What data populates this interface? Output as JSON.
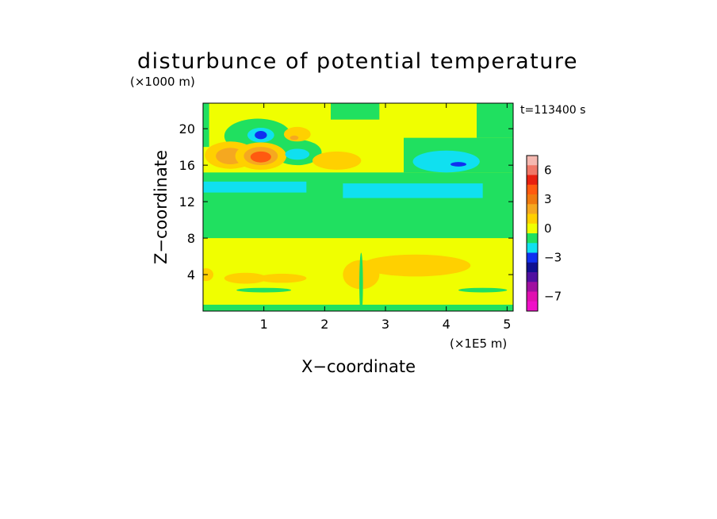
{
  "chart_data": {
    "type": "heatmap",
    "title": "disturbunce of potential temperature",
    "xlabel": "X−coordinate",
    "ylabel": "Z−coordinate",
    "x_unit": "(×1E5 m)",
    "y_unit": "(×1000 m)",
    "time_label": "t=113400 s",
    "xlim": [
      0,
      5.1
    ],
    "ylim": [
      0,
      22.8
    ],
    "x_ticks": [
      {
        "value": 1,
        "label": "1"
      },
      {
        "value": 2,
        "label": "2"
      },
      {
        "value": 3,
        "label": "3"
      },
      {
        "value": 4,
        "label": "4"
      },
      {
        "value": 5,
        "label": "5"
      }
    ],
    "y_ticks": [
      {
        "value": 4,
        "label": "4"
      },
      {
        "value": 8,
        "label": "8"
      },
      {
        "value": 12,
        "label": "12"
      },
      {
        "value": 16,
        "label": "16"
      },
      {
        "value": 20,
        "label": "20"
      }
    ],
    "colorbar": {
      "levels": [
        {
          "value": 7,
          "color": "#f5b8b0"
        },
        {
          "value": 6,
          "color": "#f07868"
        },
        {
          "value": 5,
          "color": "#e82010"
        },
        {
          "value": 4,
          "color": "#ff5a10"
        },
        {
          "value": 3,
          "color": "#f07a10"
        },
        {
          "value": 2,
          "color": "#f5a820"
        },
        {
          "value": 1,
          "color": "#ffd000"
        },
        {
          "value": 0,
          "color": "#f0ff00"
        },
        {
          "value": -1,
          "color": "#20e060"
        },
        {
          "value": -2,
          "color": "#10e0f0"
        },
        {
          "value": -3,
          "color": "#1030f0"
        },
        {
          "value": -4,
          "color": "#101090"
        },
        {
          "value": -5,
          "color": "#5010a0"
        },
        {
          "value": -6,
          "color": "#a010a0"
        },
        {
          "value": -7,
          "color": "#e010b0"
        },
        {
          "value": -8,
          "color": "#f010c8"
        }
      ],
      "tick_labels": [
        {
          "value": 6,
          "label": "6"
        },
        {
          "value": 3,
          "label": "3"
        },
        {
          "value": 0,
          "label": "0"
        },
        {
          "value": -3,
          "label": "−3"
        },
        {
          "value": -7,
          "label": "−7"
        }
      ]
    },
    "background_value": 0,
    "features": [
      {
        "kind": "band",
        "value": -1,
        "x0": 0,
        "x1": 5.1,
        "z0": 8.0,
        "z1": 15.2
      },
      {
        "kind": "band",
        "value": -2,
        "x0": 0,
        "x1": 1.7,
        "z0": 13.0,
        "z1": 14.2
      },
      {
        "kind": "band",
        "value": -2,
        "x0": 2.3,
        "x1": 4.6,
        "z0": 12.4,
        "z1": 14.0
      },
      {
        "kind": "band",
        "value": -1,
        "x0": 0,
        "x1": 5.1,
        "z0": 0.0,
        "z1": 0.7
      },
      {
        "kind": "band",
        "value": -1,
        "x0": 3.3,
        "x1": 5.1,
        "z0": 15.2,
        "z1": 19.0
      },
      {
        "kind": "band",
        "value": -1,
        "x0": 0,
        "x1": 0.1,
        "z0": 18.0,
        "z1": 22.8
      },
      {
        "kind": "band",
        "value": -1,
        "x0": 2.1,
        "x1": 2.9,
        "z0": 21.0,
        "z1": 22.8
      },
      {
        "kind": "band",
        "value": -1,
        "x0": 4.5,
        "x1": 5.1,
        "z0": 19.0,
        "z1": 22.8
      },
      {
        "kind": "blob",
        "value": -1,
        "x": 0.9,
        "z": 19.2,
        "rx": 0.55,
        "rz": 1.9
      },
      {
        "kind": "blob",
        "value": -1,
        "x": 1.55,
        "z": 17.4,
        "rx": 0.4,
        "rz": 1.4
      },
      {
        "kind": "blob",
        "value": 1,
        "x": 0.45,
        "z": 17.1,
        "rx": 0.42,
        "rz": 1.5
      },
      {
        "kind": "blob",
        "value": 2,
        "x": 0.45,
        "z": 17.0,
        "rx": 0.24,
        "rz": 0.9
      },
      {
        "kind": "blob",
        "value": 1,
        "x": 0.95,
        "z": 17.0,
        "rx": 0.42,
        "rz": 1.5
      },
      {
        "kind": "blob",
        "value": 2,
        "x": 0.95,
        "z": 17.0,
        "rx": 0.28,
        "rz": 1.0
      },
      {
        "kind": "blob",
        "value": 4,
        "x": 0.95,
        "z": 16.9,
        "rx": 0.17,
        "rz": 0.6
      },
      {
        "kind": "blob",
        "value": -2,
        "x": 0.95,
        "z": 19.3,
        "rx": 0.22,
        "rz": 0.8
      },
      {
        "kind": "blob",
        "value": -3,
        "x": 0.95,
        "z": 19.3,
        "rx": 0.1,
        "rz": 0.45
      },
      {
        "kind": "blob",
        "value": -2,
        "x": 1.55,
        "z": 17.2,
        "rx": 0.2,
        "rz": 0.6
      },
      {
        "kind": "blob",
        "value": 1,
        "x": 1.55,
        "z": 19.4,
        "rx": 0.22,
        "rz": 0.8
      },
      {
        "kind": "blob",
        "value": 2,
        "x": 1.5,
        "z": 19.0,
        "rx": 0.07,
        "rz": 0.25
      },
      {
        "kind": "blob",
        "value": 1,
        "x": 2.2,
        "z": 16.5,
        "rx": 0.4,
        "rz": 1.0
      },
      {
        "kind": "blob",
        "value": -2,
        "x": 4.0,
        "z": 16.4,
        "rx": 0.55,
        "rz": 1.2
      },
      {
        "kind": "blob",
        "value": -3,
        "x": 4.2,
        "z": 16.1,
        "rx": 0.13,
        "rz": 0.25
      },
      {
        "kind": "blob",
        "value": 1,
        "x": 0.7,
        "z": 3.6,
        "rx": 0.35,
        "rz": 0.6
      },
      {
        "kind": "blob",
        "value": 1,
        "x": 1.3,
        "z": 3.6,
        "rx": 0.4,
        "rz": 0.5
      },
      {
        "kind": "blob",
        "value": 1,
        "x": 3.5,
        "z": 5.0,
        "rx": 0.9,
        "rz": 1.2
      },
      {
        "kind": "blob",
        "value": 1,
        "x": 2.6,
        "z": 4.0,
        "rx": 0.3,
        "rz": 1.6
      },
      {
        "kind": "blob",
        "value": 1,
        "x": 0.05,
        "z": 4.0,
        "rx": 0.12,
        "rz": 0.7
      },
      {
        "kind": "blob",
        "value": -1,
        "x": 2.6,
        "z": 3.0,
        "rx": 0.03,
        "rz": 3.4
      },
      {
        "kind": "blob",
        "value": -1,
        "x": 1.0,
        "z": 2.3,
        "rx": 0.45,
        "rz": 0.25
      },
      {
        "kind": "blob",
        "value": -1,
        "x": 4.6,
        "z": 2.3,
        "rx": 0.4,
        "rz": 0.25
      }
    ]
  }
}
